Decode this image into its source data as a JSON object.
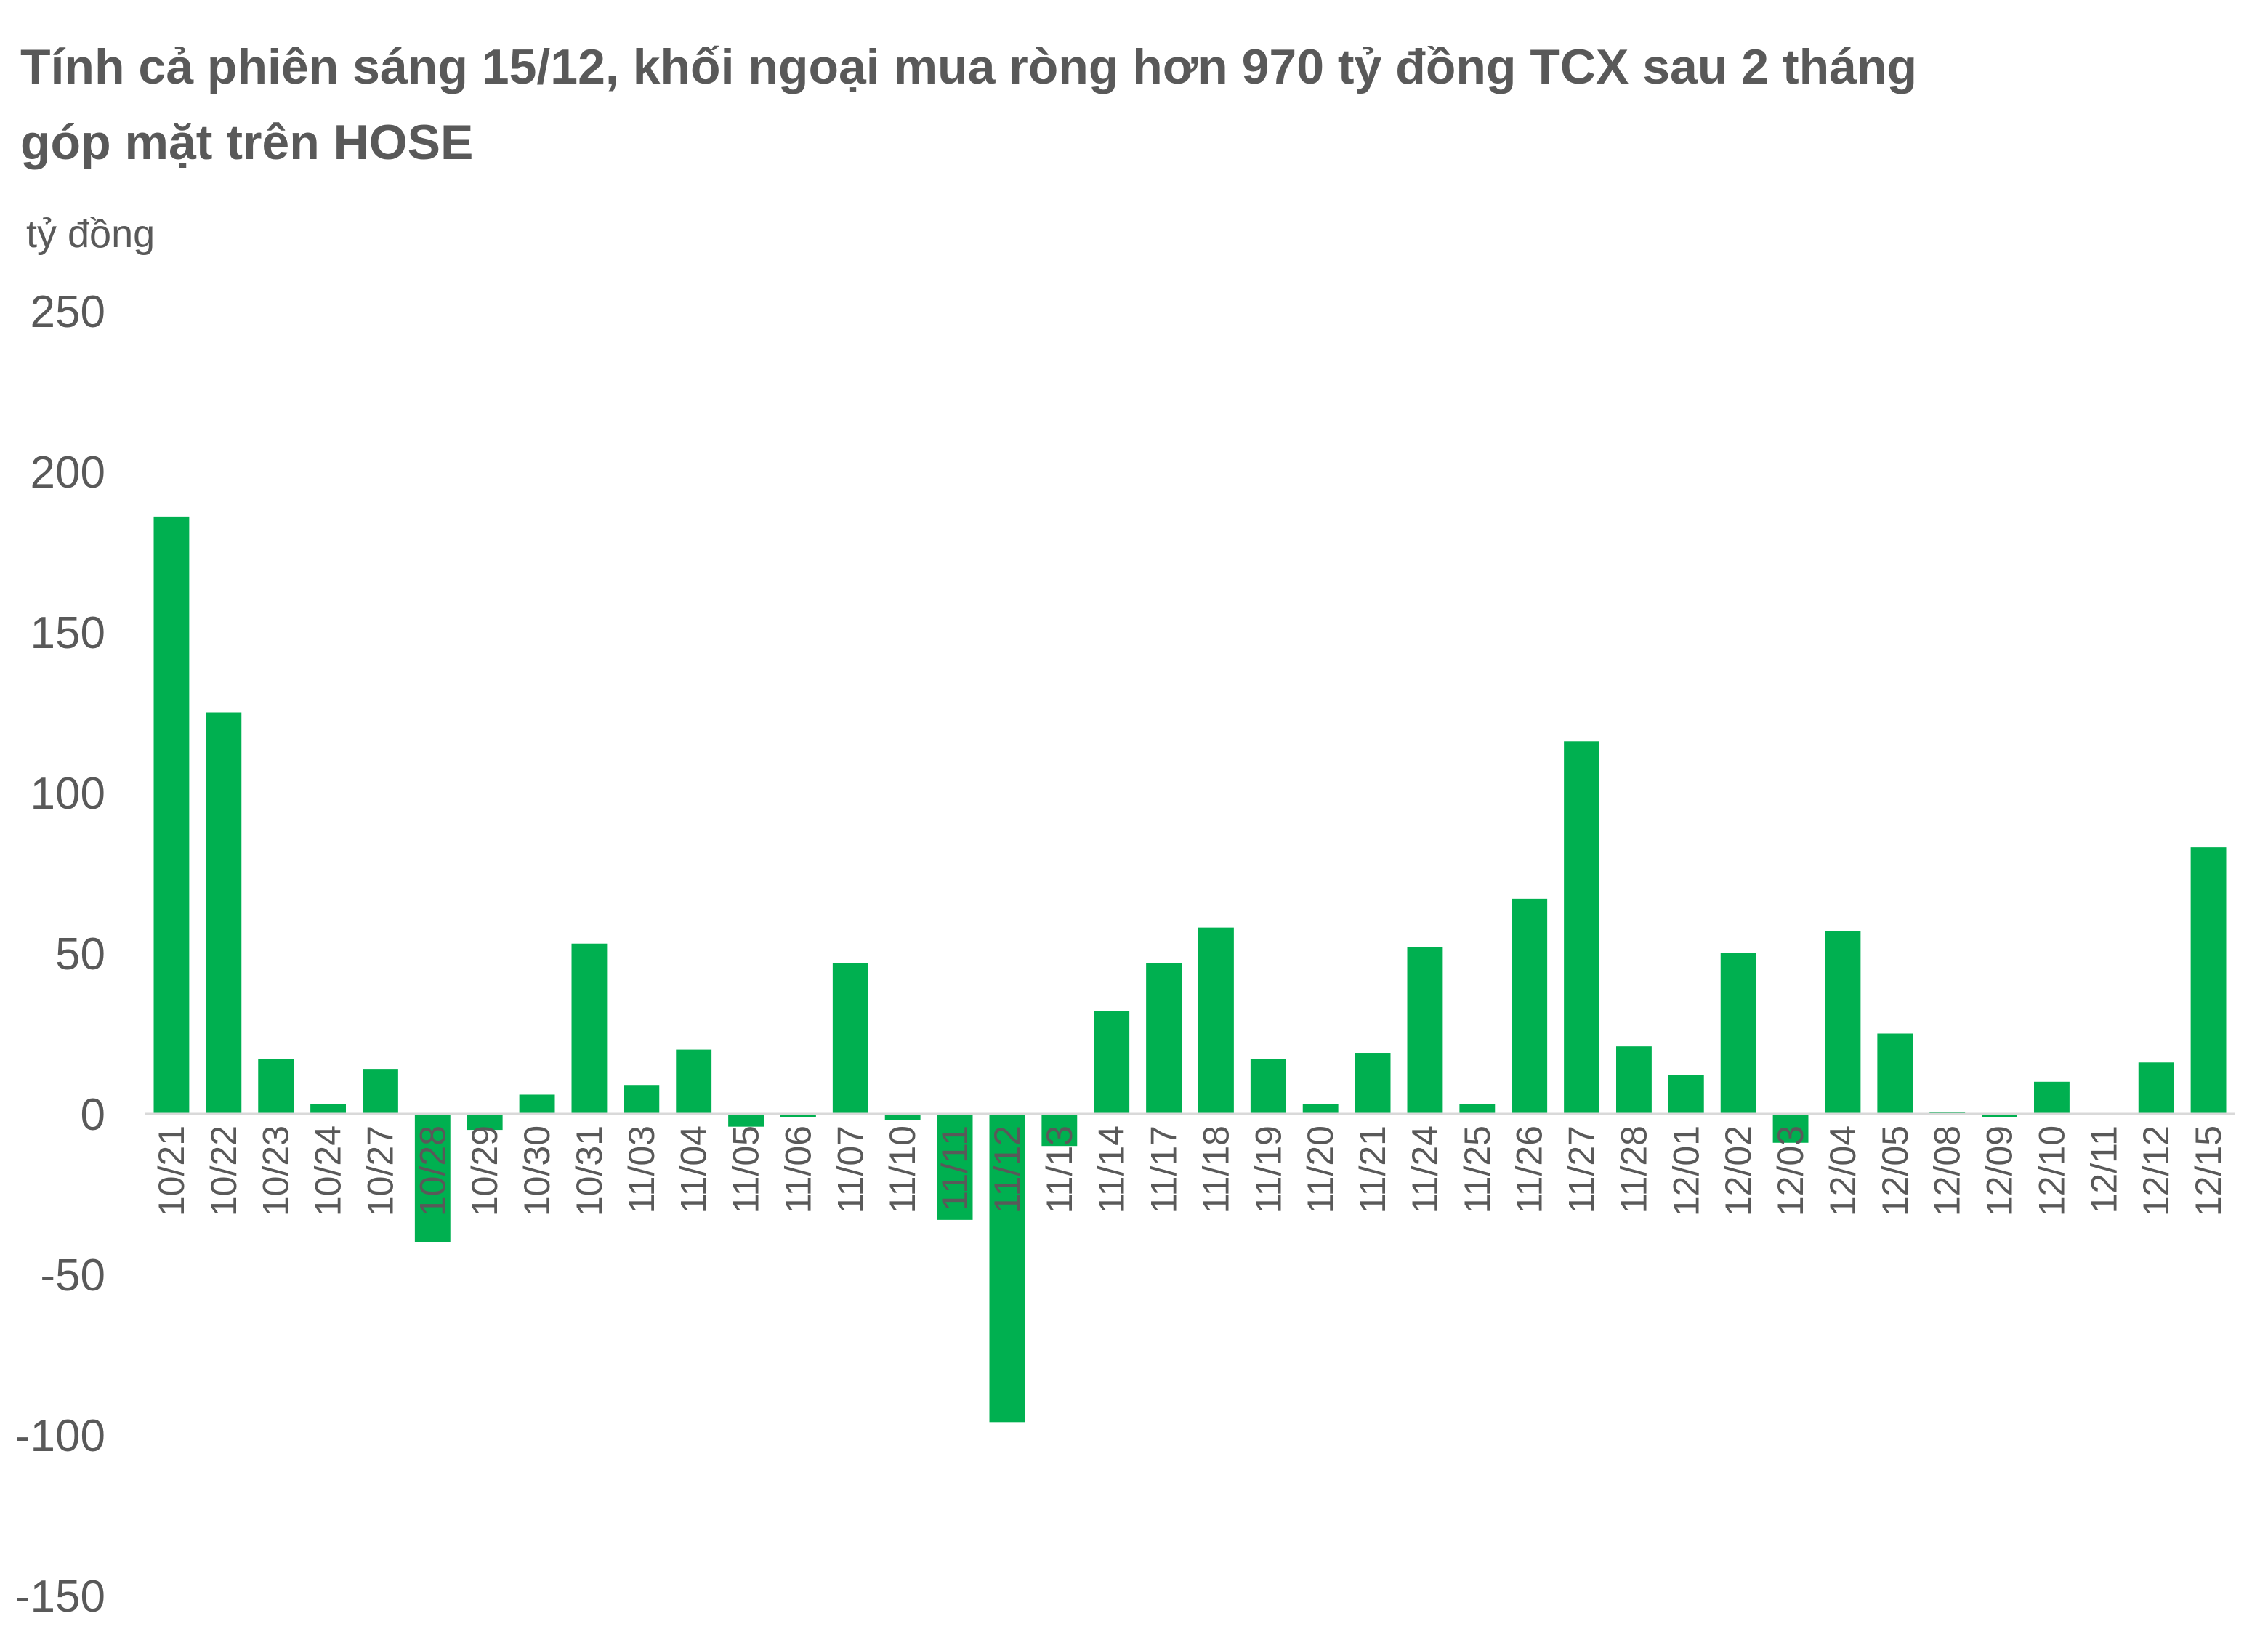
{
  "chart_data": {
    "type": "bar",
    "title": "Tính cả phiên sáng 15/12, khối ngoại mua ròng hơn 970 tỷ đồng TCX sau 2 tháng góp mặt trên HOSE",
    "xlabel": "",
    "ylabel": "tỷ đồng",
    "ylim": [
      -150,
      250
    ],
    "yticks": [
      "250",
      "200",
      "150",
      "100",
      "50",
      "0",
      "-50",
      "-100",
      "-150"
    ],
    "grid": false,
    "bar_color": "#00b050",
    "categories": [
      "10/21",
      "10/22",
      "10/23",
      "10/24",
      "10/27",
      "10/28",
      "10/29",
      "10/30",
      "10/31",
      "11/03",
      "11/04",
      "11/05",
      "11/06",
      "11/07",
      "11/10",
      "11/11",
      "11/12",
      "11/13",
      "11/14",
      "11/17",
      "11/18",
      "11/19",
      "11/20",
      "11/21",
      "11/24",
      "11/25",
      "11/26",
      "11/27",
      "11/28",
      "12/01",
      "12/02",
      "12/03",
      "12/04",
      "12/05",
      "12/08",
      "12/09",
      "12/10",
      "12/11",
      "12/12",
      "12/15"
    ],
    "values": [
      186,
      125,
      17,
      3,
      14,
      -40,
      -5,
      6,
      53,
      9,
      20,
      -4,
      -1,
      47,
      -2,
      -33,
      -96,
      -10,
      32,
      47,
      58,
      17,
      3,
      19,
      52,
      3,
      67,
      116,
      21,
      12,
      50,
      -9,
      57,
      25,
      0.5,
      -1,
      10,
      0,
      16,
      83
    ]
  }
}
